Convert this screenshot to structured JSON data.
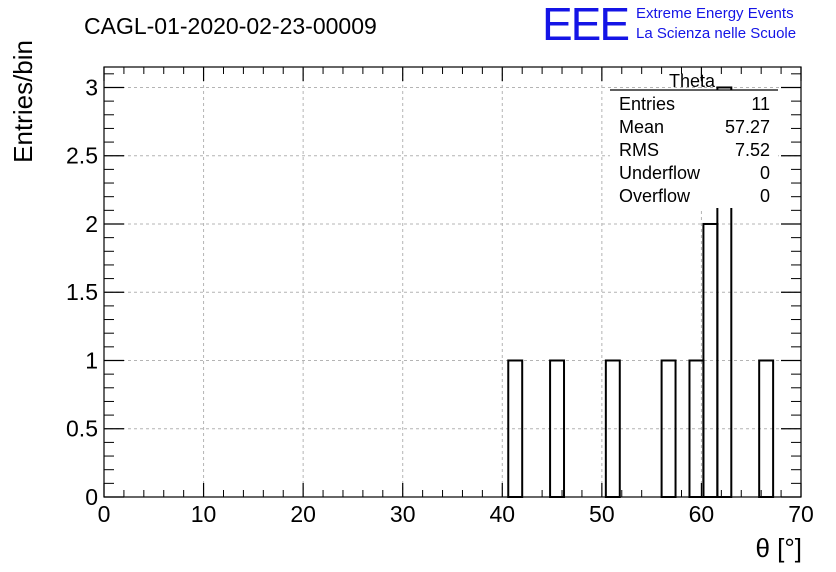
{
  "header": {
    "run_title": "CAGL-01-2020-02-23-00009",
    "logo_text": "EEE",
    "logo_line1": "Extreme Energy Events",
    "logo_line2": "La Scienza nelle Scuole",
    "logo_color": "#1414e6"
  },
  "stats": {
    "title": "Theta",
    "rows": [
      {
        "label": "Entries",
        "value": "11"
      },
      {
        "label": "Mean",
        "value": "57.27"
      },
      {
        "label": "RMS",
        "value": "7.52"
      },
      {
        "label": "Underflow",
        "value": "0"
      },
      {
        "label": "Overflow",
        "value": "0"
      }
    ]
  },
  "chart_data": {
    "type": "bar",
    "subtype": "histogram",
    "xlabel": "θ [°]",
    "ylabel": "Entries/bin",
    "xlim": [
      0,
      70
    ],
    "ylim": [
      0,
      3.15
    ],
    "grid": true,
    "x_ticks": [
      "0",
      "10",
      "20",
      "30",
      "40",
      "50",
      "60",
      "70"
    ],
    "y_ticks": [
      "0",
      "0.5",
      "1",
      "1.5",
      "2",
      "2.5",
      "3"
    ],
    "bin_width": 1.4,
    "bins": [
      {
        "x0": 40.6,
        "x1": 42.0,
        "count": 1
      },
      {
        "x0": 44.8,
        "x1": 46.2,
        "count": 1
      },
      {
        "x0": 50.4,
        "x1": 51.8,
        "count": 1
      },
      {
        "x0": 56.0,
        "x1": 57.4,
        "count": 1
      },
      {
        "x0": 58.8,
        "x1": 60.2,
        "count": 1
      },
      {
        "x0": 60.2,
        "x1": 61.6,
        "count": 2
      },
      {
        "x0": 61.6,
        "x1": 63.0,
        "count": 3
      },
      {
        "x0": 65.8,
        "x1": 67.2,
        "count": 1
      }
    ]
  }
}
